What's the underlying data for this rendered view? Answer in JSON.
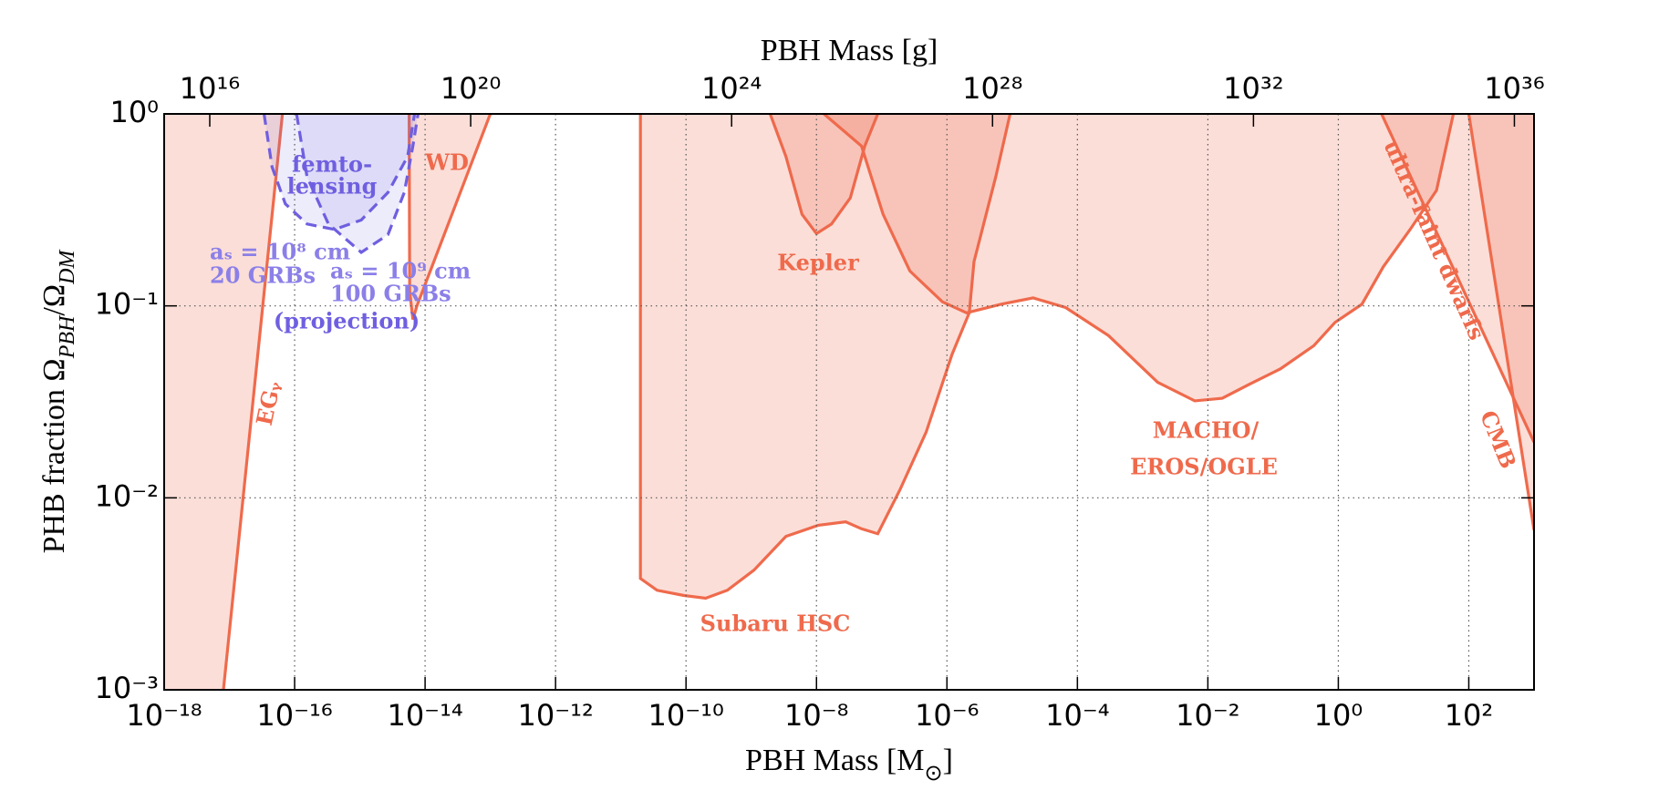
{
  "chart_data": {
    "type": "line",
    "xlabel": [
      "PBH Mass [M",
      "⊙",
      "]"
    ],
    "ylabel": [
      "PHB fraction Ω",
      "PBH",
      "/Ω",
      "DM"
    ],
    "x2label": "PBH Mass [g]",
    "xscale": "log",
    "yscale": "log",
    "xlim": [
      1e-18,
      1000
    ],
    "ylim": [
      0.001,
      1
    ],
    "x2lim": [
      2000000000000000.0,
      2e+36
    ],
    "xticks": [
      {
        "value": 1e-18,
        "label": "10⁻¹⁸"
      },
      {
        "value": 1e-16,
        "label": "10⁻¹⁶"
      },
      {
        "value": 1e-14,
        "label": "10⁻¹⁴"
      },
      {
        "value": 1e-12,
        "label": "10⁻¹²"
      },
      {
        "value": 1e-10,
        "label": "10⁻¹⁰"
      },
      {
        "value": 1e-08,
        "label": "10⁻⁸"
      },
      {
        "value": 1e-06,
        "label": "10⁻⁶"
      },
      {
        "value": 0.0001,
        "label": "10⁻⁴"
      },
      {
        "value": 0.01,
        "label": "10⁻²"
      },
      {
        "value": 1,
        "label": "10⁰"
      },
      {
        "value": 100,
        "label": "10²"
      }
    ],
    "yticks": [
      {
        "value": 0.001,
        "label": "10⁻³"
      },
      {
        "value": 0.01,
        "label": "10⁻²"
      },
      {
        "value": 0.1,
        "label": "10⁻¹"
      },
      {
        "value": 1,
        "label": "10⁰"
      }
    ],
    "x2ticks": [
      {
        "value": 1e+16,
        "label": "10¹⁶"
      },
      {
        "value": 1e+20,
        "label": "10²⁰"
      },
      {
        "value": 1e+24,
        "label": "10²⁴"
      },
      {
        "value": 1e+28,
        "label": "10²⁸"
      },
      {
        "value": 1e+32,
        "label": "10³²"
      },
      {
        "value": 1e+36,
        "label": "10³⁶"
      }
    ],
    "grid": true,
    "series": [
      {
        "color": "#ef6a4c",
        "fill": "left",
        "x": [
          8.1e-18,
          6.5e-17
        ],
        "values": [
          0.001,
          1
        ]
      },
      {
        "color": "#ef6a4c",
        "fill": "above",
        "x": [
          5.7e-15,
          5.8e-15,
          6.5e-15,
          7.5e-15,
          1e-13
        ],
        "values": [
          1,
          0.12,
          0.085,
          0.1,
          1
        ]
      },
      {
        "color": "#6f5fe0",
        "fill": "above",
        "dashed": true,
        "x": [
          3.4e-17,
          4.5e-17,
          7.2e-17,
          1.55e-16,
          4.1e-16,
          1.05e-15,
          2.7e-15,
          5.4e-15,
          6.9e-15
        ],
        "values": [
          1,
          0.53,
          0.34,
          0.267,
          0.25,
          0.28,
          0.39,
          0.6,
          1
        ]
      },
      {
        "color": "#6f5fe0",
        "fill": "above",
        "dashed": true,
        "x": [
          1.07e-16,
          1.55e-16,
          3.3e-16,
          1.05e-15,
          2.7e-15,
          4.8e-15,
          6.5e-15,
          7.8e-15
        ],
        "values": [
          1,
          0.47,
          0.267,
          0.19,
          0.235,
          0.39,
          0.68,
          1
        ]
      },
      {
        "color": "#ef6a4c",
        "fill": "above",
        "x": [
          1.95e-09,
          3.4e-09,
          6e-09,
          1e-08,
          1.7e-08,
          3.3e-08,
          5.5e-08,
          8.7e-08
        ],
        "values": [
          1,
          0.6,
          0.3,
          0.238,
          0.267,
          0.365,
          0.68,
          1
        ]
      },
      {
        "color": "#ef6a4c",
        "fill": "above",
        "x": [
          2e-11,
          2e-11,
          3.6e-11,
          9.3e-11,
          2e-10,
          4.3e-10,
          1.1e-09,
          3.4e-09,
          1.07e-08,
          2.8e-08,
          4.9e-08,
          8.7e-08,
          1.9e-07,
          4.8e-07,
          1.2e-06,
          2.2e-06,
          2.6e-06,
          5.6e-06,
          9.3e-06
        ],
        "values": [
          1,
          0.0038,
          0.0033,
          0.0031,
          0.003,
          0.0033,
          0.0042,
          0.0063,
          0.0072,
          0.0075,
          0.0069,
          0.0065,
          0.011,
          0.022,
          0.056,
          0.092,
          0.17,
          0.47,
          1
        ]
      },
      {
        "color": "#ef6a4c",
        "fill": "above",
        "x": [
          1.3e-08,
          4.9e-08,
          1.05e-07,
          2.7e-07,
          8.5e-07,
          2e-06,
          6.8e-06,
          2.1e-05,
          6.6e-05,
          0.0003,
          0.0017,
          0.0063,
          0.0166,
          0.043,
          0.13,
          0.42,
          0.89,
          2.3,
          4.9,
          12.6,
          32,
          58
        ],
        "values": [
          1,
          0.68,
          0.3,
          0.152,
          0.105,
          0.092,
          0.102,
          0.11,
          0.098,
          0.07,
          0.04,
          0.032,
          0.033,
          0.039,
          0.047,
          0.062,
          0.082,
          0.102,
          0.16,
          0.25,
          0.4,
          1
        ]
      },
      {
        "color": "#ef6a4c",
        "fill": "above",
        "x": [
          4.6,
          1000
        ],
        "values": [
          1,
          0.0195
        ]
      },
      {
        "color": "#ef6a4c",
        "fill": "above",
        "x": [
          100,
          1000
        ],
        "values": [
          1,
          0.0068
        ]
      }
    ],
    "annotations": [
      {
        "text": "femto-",
        "color": "#6f5fe0"
      },
      {
        "text": "lensing",
        "color": "#6f5fe0"
      },
      {
        "text": "WD",
        "color": "#ef6a4c"
      },
      {
        "text": "aₛ = 10⁸ cm",
        "color": "#8b7fe8"
      },
      {
        "text": "20 GRBs",
        "color": "#8b7fe8"
      },
      {
        "text": "aₛ = 10⁹ cm",
        "color": "#8b7fe8"
      },
      {
        "text": "100 GRBs",
        "color": "#8b7fe8"
      },
      {
        "text": "(projection)",
        "color": "#6f5fe0"
      },
      {
        "text": "EGᵧ",
        "color": "#ef6a4c"
      },
      {
        "text": "Kepler",
        "color": "#ef6a4c"
      },
      {
        "text": "Subaru HSC",
        "color": "#ef6a4c"
      },
      {
        "text": "MACHO/",
        "color": "#ef6a4c"
      },
      {
        "text": "EROS/OGLE",
        "color": "#ef6a4c"
      },
      {
        "text": "ultra-faint dwarfs",
        "color": "#ef6a4c"
      },
      {
        "text": "CMB",
        "color": "#ef6a4c"
      }
    ]
  }
}
